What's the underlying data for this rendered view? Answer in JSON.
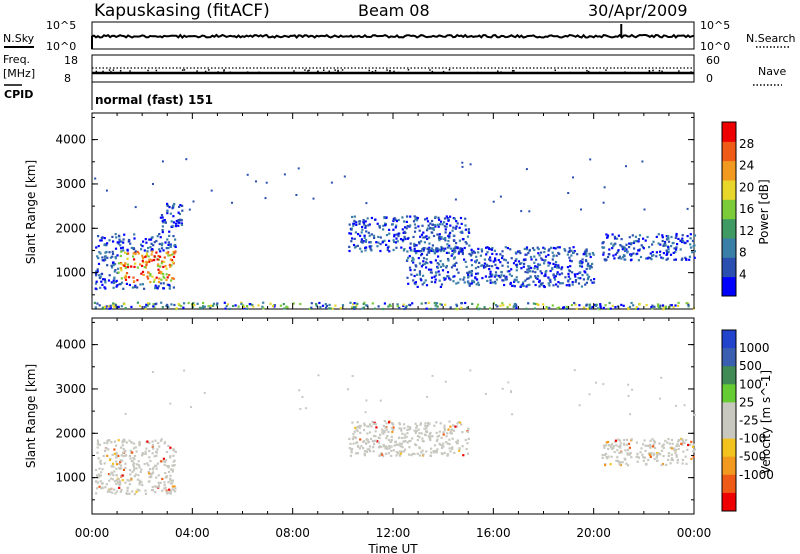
{
  "header": {
    "station": "Kapuskasing (fitACF)",
    "beam": "Beam 08",
    "date": "30/Apr/2009"
  },
  "noise_panel": {
    "left_label": "N.Sky",
    "left_ticks": [
      "10^5",
      "10^0"
    ],
    "right_ticks": [
      "10^5",
      "10^0"
    ],
    "right_label": "N.Search"
  },
  "freq_panel": {
    "left_label_1": "Freq.",
    "left_label_2": "[MHz]",
    "left_ticks": [
      "18",
      "8"
    ],
    "right_ticks": [
      "60",
      "0"
    ],
    "right_label": "Nave"
  },
  "cpid": {
    "label": "CPID",
    "mode": "normal (fast) 151"
  },
  "colors": {
    "power_scale": [
      "#0000ff",
      "#2a4fb0",
      "#3a7fa8",
      "#3f9a64",
      "#7ccc3a",
      "#e8d62a",
      "#f29a1f",
      "#ef5a17",
      "#ee0000"
    ],
    "velocity_scale": [
      "#ee0000",
      "#ef5a17",
      "#f29a1f",
      "#f2c21f",
      "#c8c8c0",
      "#c8c8c0",
      "#66cc33",
      "#3f8a55",
      "#3a5fb0",
      "#2244cc"
    ]
  },
  "chart_data": [
    {
      "type": "heatmap",
      "title": "",
      "xlabel": "Time UT",
      "ylabel": "Slant Range [km]",
      "x_ticks": [
        "00:00",
        "04:00",
        "08:00",
        "12:00",
        "16:00",
        "20:00",
        "00:00"
      ],
      "xlim_hours": [
        0,
        24
      ],
      "y_ticks": [
        1000,
        2000,
        3000,
        4000
      ],
      "ylim": [
        180,
        4600
      ],
      "colorbar": {
        "label": "Power [dB]",
        "ticks": [
          4,
          8,
          12,
          16,
          20,
          24,
          28
        ]
      },
      "scatter_regions": [
        {
          "hours": [
            0.1,
            3.3
          ],
          "range_km": [
            650,
            1900
          ],
          "value_dB": "4-28"
        },
        {
          "hours": [
            2.7,
            3.6
          ],
          "range_km": [
            1900,
            2600
          ],
          "value_dB": "4-8"
        },
        {
          "hours": [
            10.2,
            15.0
          ],
          "range_km": [
            1500,
            2300
          ],
          "value_dB": "4-8"
        },
        {
          "hours": [
            12.5,
            20.0
          ],
          "range_km": [
            700,
            1600
          ],
          "value_dB": "4-8"
        },
        {
          "hours": [
            20.3,
            24.0
          ],
          "range_km": [
            1300,
            1900
          ],
          "value_dB": "4-16"
        },
        {
          "hours": [
            0.0,
            24.0
          ],
          "range_km": [
            200,
            350
          ],
          "value_dB": "4-24"
        }
      ]
    },
    {
      "type": "heatmap",
      "title": "",
      "xlabel": "Time UT",
      "ylabel": "Slant Range [km]",
      "x_ticks": [
        "00:00",
        "04:00",
        "08:00",
        "12:00",
        "16:00",
        "20:00",
        "00:00"
      ],
      "xlim_hours": [
        0,
        24
      ],
      "y_ticks": [
        1000,
        2000,
        3000,
        4000
      ],
      "ylim": [
        180,
        4600
      ],
      "colorbar": {
        "label": "Velocity [m s^-1]",
        "ticks": [
          "1000",
          "500",
          "100",
          "25",
          "-25",
          "-100",
          "-500",
          "-1000"
        ]
      },
      "scatter_regions": [
        {
          "hours": [
            0.1,
            3.3
          ],
          "range_km": [
            650,
            1900
          ],
          "velocity": "-25 to 25, some -500"
        },
        {
          "hours": [
            10.2,
            15.0
          ],
          "range_km": [
            1500,
            2300
          ],
          "velocity": "-25 to 25"
        },
        {
          "hours": [
            20.3,
            24.0
          ],
          "range_km": [
            1300,
            1900
          ],
          "velocity": "-25 to 25"
        }
      ]
    }
  ]
}
